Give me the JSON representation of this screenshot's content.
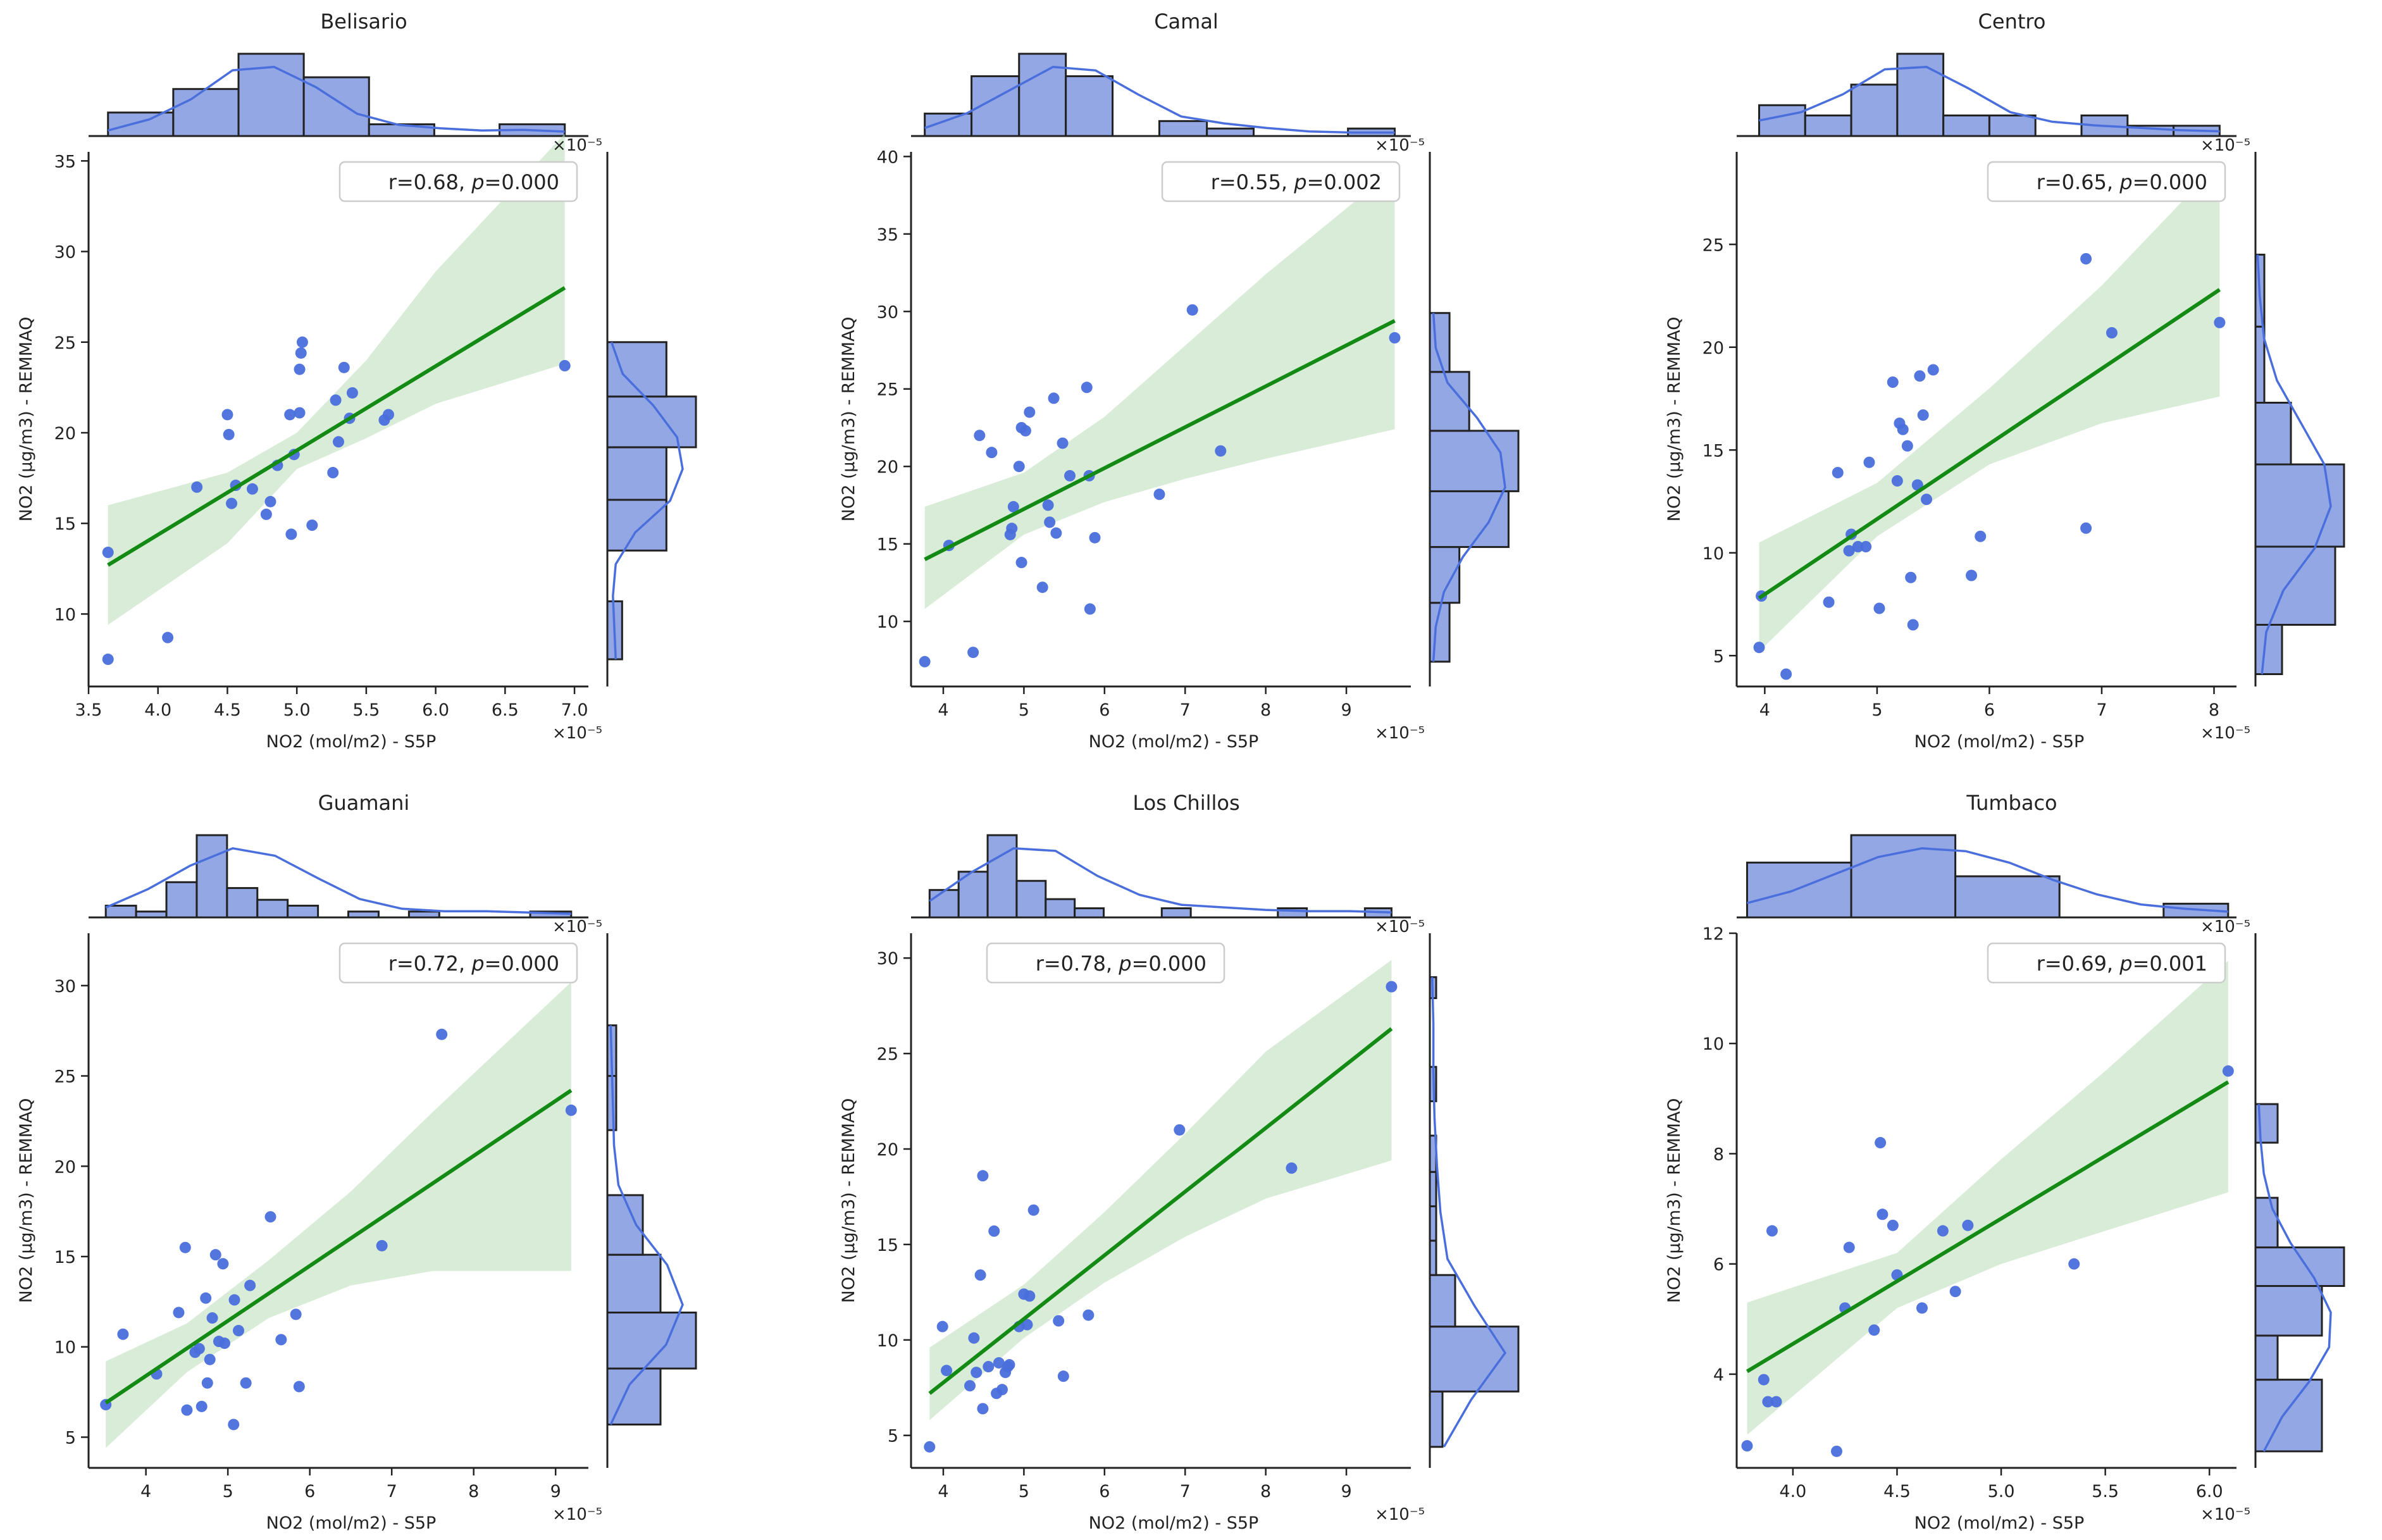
{
  "chart_data": [
    {
      "type": "scatter",
      "title": "Belisario",
      "xlabel": "NO2 (mol/m2) - S5P",
      "ylabel": "NO2 (µg/m3) - REMMAQ",
      "x_scale_label": "×10⁻⁵",
      "stat_r": "0.68",
      "stat_p": "0.000",
      "legend_position": "top-right",
      "xlim": [
        3.5,
        7.1
      ],
      "ylim": [
        6,
        35.5
      ],
      "xticks": [
        "3.5",
        "4.0",
        "4.5",
        "5.0",
        "5.5",
        "6.0",
        "6.5",
        "7.0"
      ],
      "yticks": [
        "10",
        "15",
        "20",
        "25",
        "30",
        "35"
      ],
      "x": [
        3.64,
        3.64,
        4.07,
        4.28,
        4.5,
        4.51,
        4.53,
        4.56,
        4.68,
        4.78,
        4.81,
        4.86,
        4.95,
        4.96,
        4.98,
        5.02,
        5.02,
        5.03,
        5.04,
        5.11,
        5.26,
        5.28,
        5.3,
        5.34,
        5.38,
        5.4,
        5.63,
        5.66,
        6.93
      ],
      "y": [
        7.5,
        13.4,
        8.7,
        17.0,
        21.0,
        19.9,
        16.1,
        17.1,
        16.9,
        15.5,
        16.2,
        18.2,
        21.0,
        14.4,
        18.8,
        21.1,
        23.5,
        24.4,
        25.0,
        14.9,
        17.8,
        21.8,
        19.5,
        23.6,
        20.8,
        22.2,
        20.7,
        21.0,
        23.7
      ],
      "fit": {
        "x": [
          3.64,
          6.93
        ],
        "y": [
          12.7,
          28.0
        ]
      },
      "ci": [
        [
          3.64,
          9.4,
          16.0
        ],
        [
          4.5,
          13.9,
          17.8
        ],
        [
          5.0,
          18.0,
          20.0
        ],
        [
          5.5,
          19.7,
          24.0
        ],
        [
          6.0,
          21.6,
          28.9
        ],
        [
          6.93,
          23.8,
          36.5
        ]
      ],
      "hist_x": {
        "edges": [
          3.64,
          4.11,
          4.58,
          5.05,
          5.52,
          5.99,
          6.46,
          6.93
        ],
        "counts": [
          2,
          4,
          7,
          5,
          1,
          0,
          1
        ]
      },
      "hist_y": {
        "edges": [
          7.5,
          10.7,
          13.5,
          16.3,
          19.2,
          22.0,
          25.0
        ],
        "counts": [
          1,
          0,
          4,
          4,
          6,
          4
        ]
      },
      "kde_x": [
        0.5,
        1.5,
        3.3,
        5.9,
        6.2,
        4.4,
        2.0,
        1.0,
        0.7,
        0.5,
        0.55,
        0.4
      ],
      "kde_y": [
        0.6,
        0.5,
        0.4,
        0.6,
        2.0,
        4.5,
        5.4,
        5.0,
        3.3,
        1.1,
        0.3
      ]
    },
    {
      "type": "scatter",
      "title": "Camal",
      "xlabel": "NO2 (mol/m2) - S5P",
      "ylabel": "NO2 (µg/m3) - REMMAQ",
      "x_scale_label": "×10⁻⁵",
      "stat_r": "0.55",
      "stat_p": "0.002",
      "legend_position": "top-right",
      "xlim": [
        3.6,
        9.8
      ],
      "ylim": [
        5.8,
        40.3
      ],
      "xticks": [
        "4",
        "5",
        "6",
        "7",
        "8",
        "9"
      ],
      "yticks": [
        "10",
        "15",
        "20",
        "25",
        "30",
        "35",
        "40"
      ],
      "x": [
        3.77,
        4.07,
        4.37,
        4.45,
        4.6,
        4.83,
        4.85,
        4.87,
        4.94,
        4.97,
        4.97,
        5.02,
        5.07,
        5.23,
        5.3,
        5.32,
        5.37,
        5.4,
        5.48,
        5.57,
        5.78,
        5.81,
        5.82,
        5.88,
        6.68,
        7.09,
        7.44,
        9.6
      ],
      "y": [
        7.4,
        14.9,
        8.0,
        22.0,
        20.9,
        15.6,
        16.0,
        17.4,
        20.0,
        13.8,
        22.5,
        22.3,
        23.5,
        12.2,
        17.5,
        16.4,
        24.4,
        15.7,
        21.5,
        19.4,
        25.1,
        19.4,
        10.8,
        15.4,
        18.2,
        30.1,
        21.0,
        28.3
      ],
      "fit": {
        "x": [
          3.77,
          9.6
        ],
        "y": [
          14.0,
          29.4
        ]
      },
      "ci": [
        [
          3.77,
          10.8,
          17.4
        ],
        [
          5.0,
          15.6,
          19.6
        ],
        [
          6.0,
          17.7,
          23.2
        ],
        [
          7.0,
          19.2,
          27.8
        ],
        [
          8.0,
          20.5,
          32.4
        ],
        [
          9.6,
          22.4,
          39.2
        ]
      ],
      "hist_x": {
        "edges": [
          3.77,
          4.35,
          4.94,
          5.52,
          6.1,
          6.68,
          7.27,
          7.85,
          8.43,
          9.02,
          9.6
        ],
        "counts": [
          3,
          8,
          11,
          8,
          0,
          2,
          1,
          0,
          0,
          1
        ]
      },
      "hist_y": {
        "edges": [
          7.4,
          11.2,
          14.8,
          18.4,
          22.3,
          26.1,
          29.9
        ],
        "counts": [
          2,
          3,
          8,
          9,
          4,
          2
        ]
      },
      "kde_x": [
        0.7,
        2.0,
        4.0,
        6.0,
        5.7,
        3.6,
        1.7,
        1.1,
        0.7,
        0.4,
        0.3,
        0.3
      ],
      "kde_y": [
        0.3,
        0.5,
        1.2,
        2.8,
        5.0,
        6.4,
        6.0,
        4.0,
        1.5,
        0.5,
        0.3
      ]
    },
    {
      "type": "scatter",
      "title": "Centro",
      "xlabel": "NO2 (mol/m2) - S5P",
      "ylabel": "NO2 (µg/m3) - REMMAQ",
      "x_scale_label": "×10⁻⁵",
      "stat_r": "0.65",
      "stat_p": "0.000",
      "legend_position": "top-right",
      "xlim": [
        3.75,
        8.2
      ],
      "ylim": [
        3.5,
        29.5
      ],
      "xticks": [
        "4",
        "5",
        "6",
        "7",
        "8"
      ],
      "yticks": [
        "5",
        "10",
        "15",
        "20",
        "25"
      ],
      "x": [
        3.95,
        3.97,
        4.19,
        4.57,
        4.65,
        4.75,
        4.77,
        4.83,
        4.9,
        4.93,
        5.02,
        5.14,
        5.18,
        5.2,
        5.23,
        5.27,
        5.3,
        5.32,
        5.36,
        5.38,
        5.41,
        5.44,
        5.5,
        5.84,
        5.92,
        6.86,
        6.86,
        7.09,
        8.05
      ],
      "y": [
        5.4,
        7.9,
        4.1,
        7.6,
        13.9,
        10.1,
        10.9,
        10.3,
        10.3,
        14.4,
        7.3,
        18.3,
        13.5,
        16.3,
        16.0,
        15.2,
        8.8,
        6.5,
        13.3,
        18.6,
        16.7,
        12.6,
        18.9,
        8.9,
        10.8,
        24.3,
        11.2,
        20.7,
        21.2
      ],
      "fit": {
        "x": [
          3.95,
          8.05
        ],
        "y": [
          7.8,
          22.8
        ]
      },
      "ci": [
        [
          3.95,
          5.2,
          10.5
        ],
        [
          5.0,
          10.8,
          13.4
        ],
        [
          6.0,
          14.3,
          18.0
        ],
        [
          7.0,
          16.3,
          23.0
        ],
        [
          8.05,
          17.6,
          29.0
        ]
      ],
      "hist_x": {
        "edges": [
          3.95,
          4.36,
          4.77,
          5.18,
          5.59,
          6.0,
          6.41,
          6.82,
          7.23,
          7.64,
          8.05
        ],
        "counts": [
          3,
          2,
          5,
          8,
          2,
          2,
          0,
          2,
          1,
          1
        ]
      },
      "hist_y": {
        "edges": [
          4.1,
          6.5,
          10.3,
          14.3,
          17.3,
          21.0,
          24.5
        ],
        "counts": [
          3,
          9,
          10,
          4,
          1,
          1
        ]
      },
      "kde_x": [
        1.3,
        2.0,
        3.5,
        5.6,
        5.8,
        4.0,
        2.0,
        1.2,
        0.9,
        0.7,
        0.5,
        0.4
      ],
      "kde_y": [
        0.6,
        1.0,
        2.6,
        5.5,
        7.0,
        6.4,
        4.2,
        2.0,
        0.8,
        0.4,
        0.2
      ]
    },
    {
      "type": "scatter",
      "title": "Guamani",
      "xlabel": "NO2 (mol/m2) - S5P",
      "ylabel": "NO2 (µg/m3) - REMMAQ",
      "x_scale_label": "×10⁻⁵",
      "stat_r": "0.72",
      "stat_p": "0.000",
      "legend_position": "top-right",
      "xlim": [
        3.3,
        9.4
      ],
      "ylim": [
        3.3,
        32.9
      ],
      "xticks": [
        "4",
        "5",
        "6",
        "7",
        "8",
        "9"
      ],
      "yticks": [
        "5",
        "10",
        "15",
        "20",
        "25",
        "30"
      ],
      "x": [
        3.51,
        3.72,
        4.13,
        4.4,
        4.48,
        4.5,
        4.6,
        4.65,
        4.68,
        4.73,
        4.75,
        4.78,
        4.81,
        4.85,
        4.89,
        4.94,
        4.96,
        5.07,
        5.08,
        5.13,
        5.22,
        5.27,
        5.52,
        5.65,
        5.83,
        5.87,
        6.88,
        7.61,
        9.19
      ],
      "y": [
        6.8,
        10.7,
        8.5,
        11.9,
        15.5,
        6.5,
        9.7,
        9.9,
        6.7,
        12.7,
        8.0,
        9.3,
        11.6,
        15.1,
        10.3,
        14.6,
        10.2,
        5.7,
        12.6,
        10.9,
        8.0,
        13.4,
        17.2,
        10.4,
        11.8,
        7.8,
        15.6,
        27.3,
        23.1
      ],
      "fit": {
        "x": [
          3.51,
          9.19
        ],
        "y": [
          6.9,
          24.2
        ]
      },
      "ci": [
        [
          3.51,
          4.4,
          9.2
        ],
        [
          4.5,
          8.6,
          11.3
        ],
        [
          5.5,
          11.6,
          14.8
        ],
        [
          6.5,
          13.4,
          18.6
        ],
        [
          7.5,
          14.2,
          23.0
        ],
        [
          9.19,
          14.2,
          30.2
        ]
      ],
      "hist_x": {
        "edges": [
          3.51,
          3.88,
          4.25,
          4.62,
          4.99,
          5.36,
          5.73,
          6.1,
          6.47,
          6.84,
          7.21,
          7.58,
          7.95,
          8.32,
          8.69,
          9.19
        ],
        "counts": [
          2,
          1,
          6,
          14,
          5,
          3,
          2,
          0,
          1,
          0,
          1,
          0,
          0,
          0,
          1
        ]
      },
      "hist_y": {
        "edges": [
          5.7,
          8.8,
          11.9,
          15.1,
          18.4,
          22.0,
          25.0,
          27.8
        ],
        "counts": [
          6,
          10,
          6,
          4,
          0,
          1,
          1
        ]
      },
      "kde_x": [
        0.8,
        2.3,
        4.2,
        5.6,
        5.0,
        3.2,
        1.5,
        0.7,
        0.5,
        0.5,
        0.4,
        0.3
      ],
      "kde_y": [
        0.3,
        2.0,
        5.3,
        6.8,
        5.4,
        2.6,
        1.0,
        0.6,
        0.5,
        0.4,
        0.3
      ]
    },
    {
      "type": "scatter",
      "title": "Los Chillos",
      "xlabel": "NO2 (mol/m2) - S5P",
      "ylabel": "NO2 (µg/m3) - REMMAQ",
      "x_scale_label": "×10⁻⁵",
      "stat_r": "0.78",
      "stat_p": "0.000",
      "legend_position": "top-left",
      "xlim": [
        3.6,
        9.8
      ],
      "ylim": [
        3.3,
        31.3
      ],
      "xticks": [
        "4",
        "5",
        "6",
        "7",
        "8",
        "9"
      ],
      "yticks": [
        "5",
        "10",
        "15",
        "20",
        "25",
        "30"
      ],
      "x": [
        3.83,
        3.99,
        4.04,
        4.33,
        4.38,
        4.41,
        4.46,
        4.49,
        4.49,
        4.56,
        4.63,
        4.66,
        4.69,
        4.73,
        4.77,
        4.8,
        4.82,
        4.94,
        5.0,
        5.04,
        5.07,
        5.12,
        5.43,
        5.49,
        5.8,
        6.93,
        8.32,
        9.56
      ],
      "y": [
        4.4,
        10.7,
        8.4,
        7.6,
        10.1,
        8.3,
        13.4,
        18.6,
        6.4,
        8.6,
        15.7,
        7.2,
        8.8,
        7.4,
        8.3,
        8.6,
        8.7,
        10.7,
        12.4,
        10.8,
        12.3,
        16.8,
        11.0,
        8.1,
        11.3,
        21.0,
        19.0,
        28.5
      ],
      "fit": {
        "x": [
          3.83,
          9.56
        ],
        "y": [
          7.2,
          26.3
        ]
      },
      "ci": [
        [
          3.83,
          5.8,
          9.6
        ],
        [
          5.0,
          10.1,
          12.9
        ],
        [
          6.0,
          13.0,
          16.7
        ],
        [
          7.0,
          15.4,
          20.8
        ],
        [
          8.0,
          17.4,
          25.1
        ],
        [
          9.56,
          19.4,
          29.9
        ]
      ],
      "hist_x": {
        "edges": [
          3.83,
          4.19,
          4.55,
          4.91,
          5.27,
          5.63,
          5.99,
          6.35,
          6.71,
          7.07,
          7.43,
          7.79,
          8.15,
          8.51,
          8.87,
          9.23,
          9.56
        ],
        "counts": [
          3,
          5,
          9,
          4,
          2,
          1,
          0,
          0,
          1,
          0,
          0,
          0,
          1,
          0,
          0,
          1
        ]
      },
      "hist_y": {
        "edges": [
          4.4,
          7.3,
          10.7,
          13.4,
          15.2,
          17.0,
          18.8,
          20.7,
          22.5,
          24.3,
          26.1,
          27.9,
          29.0
        ],
        "counts": [
          2,
          14,
          4,
          1,
          1,
          1,
          1,
          0,
          1,
          0,
          0,
          1
        ]
      },
      "kde_x": [
        1.3,
        3.6,
        5.5,
        5.3,
        3.3,
        1.8,
        1.0,
        0.8,
        0.6,
        0.5,
        0.5,
        0.4
      ],
      "kde_y": [
        1.2,
        3.5,
        6.4,
        3.8,
        1.5,
        0.9,
        0.6,
        0.4,
        0.3,
        0.3,
        0.2
      ]
    },
    {
      "type": "scatter",
      "title": "Tumbaco",
      "xlabel": "NO2 (mol/m2) - S5P",
      "ylabel": "NO2 (µg/m3) - REMMAQ",
      "x_scale_label": "×10⁻⁵",
      "stat_r": "0.69",
      "stat_p": "0.001",
      "legend_position": "top-right",
      "xlim": [
        3.73,
        6.13
      ],
      "ylim": [
        2.3,
        12.0
      ],
      "xticks": [
        "4.0",
        "4.5",
        "5.0",
        "5.5",
        "6.0"
      ],
      "yticks": [
        "4",
        "6",
        "8",
        "10",
        "12"
      ],
      "x": [
        3.78,
        3.86,
        3.88,
        3.9,
        3.92,
        4.21,
        4.25,
        4.27,
        4.39,
        4.42,
        4.43,
        4.48,
        4.5,
        4.62,
        4.72,
        4.78,
        4.84,
        5.35,
        6.09
      ],
      "y": [
        2.7,
        3.9,
        3.5,
        6.6,
        3.5,
        2.6,
        5.2,
        6.3,
        4.8,
        8.2,
        6.9,
        6.7,
        5.8,
        5.2,
        6.6,
        5.5,
        6.7,
        6.0,
        9.5
      ],
      "fit": {
        "x": [
          3.78,
          6.09
        ],
        "y": [
          4.05,
          9.3
        ]
      },
      "ci": [
        [
          3.78,
          2.9,
          5.3
        ],
        [
          4.5,
          5.2,
          6.2
        ],
        [
          5.0,
          6.0,
          7.9
        ],
        [
          5.5,
          6.6,
          9.5
        ],
        [
          6.09,
          7.3,
          11.5
        ]
      ],
      "hist_x": {
        "edges": [
          3.78,
          4.28,
          4.78,
          5.28,
          5.78,
          6.09
        ],
        "counts": [
          4,
          6,
          3,
          0,
          1
        ]
      },
      "hist_y": {
        "edges": [
          2.6,
          3.9,
          4.7,
          5.6,
          6.3,
          7.2,
          8.2,
          8.9
        ],
        "counts": [
          3,
          1,
          3,
          4,
          1,
          0,
          1
        ]
      },
      "kde_x": [
        1.0,
        1.8,
        3.0,
        4.2,
        4.8,
        4.6,
        3.8,
        2.6,
        1.6,
        0.9,
        0.6,
        0.4
      ],
      "kde_y": [
        0.5,
        1.6,
        3.2,
        4.4,
        4.5,
        3.5,
        2.1,
        1.0,
        0.5,
        0.3,
        0.2
      ]
    }
  ]
}
